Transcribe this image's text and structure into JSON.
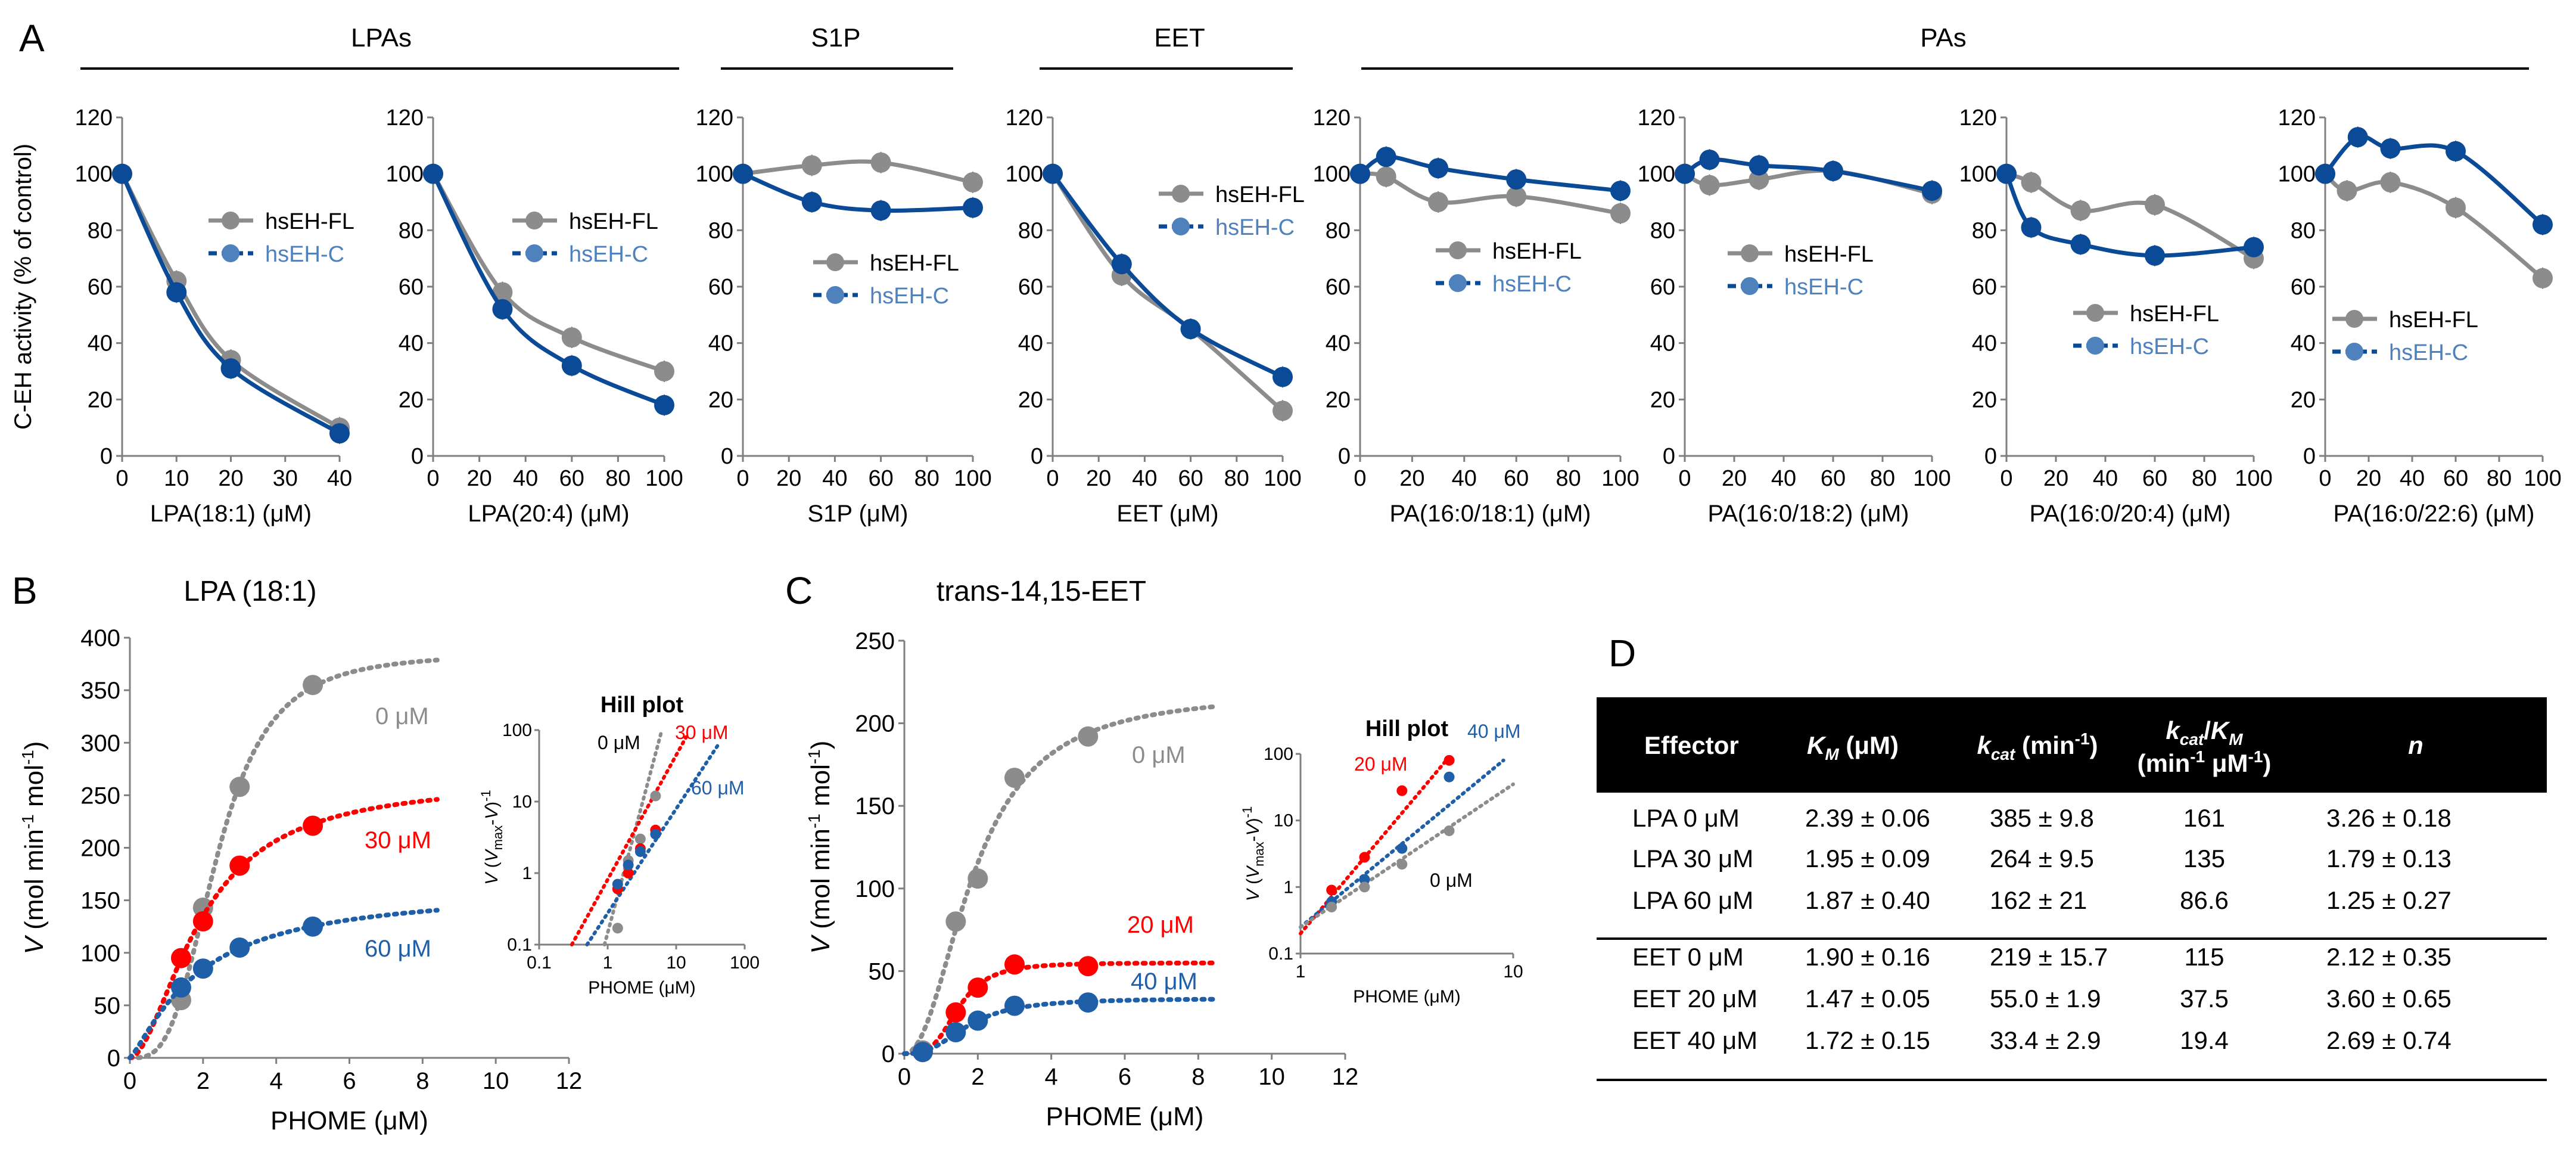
{
  "panel_labels": {
    "A": "A",
    "B": "B",
    "C": "C",
    "D": "D"
  },
  "group_headers": [
    "LPAs",
    "S1P",
    "EET",
    "PAs"
  ],
  "colors": {
    "fl": "#8c8c8c",
    "c": "#0a4a96",
    "c_legend_text": "#4f81bd",
    "zero": "#8c8c8c",
    "mid": "#ff0000",
    "high": "#1f5fa8",
    "table_header_bg": "#000000"
  },
  "legend": {
    "fl": "hsEH-FL",
    "c": "hsEH-C"
  },
  "panel_a_ylabel": "C-EH activity (% of control)",
  "chart_data": [
    {
      "id": "A1",
      "type": "line",
      "xlabel": "LPA(18:1) (μM)",
      "ylabel": "C-EH activity (% of control)",
      "xlim": [
        0,
        40
      ],
      "ylim": [
        0,
        120
      ],
      "xticks": [
        0,
        10,
        20,
        30,
        40
      ],
      "yticks": [
        0,
        20,
        40,
        60,
        80,
        100,
        120
      ],
      "legend_loc": "upper-middle",
      "series": [
        {
          "name": "hsEH-FL",
          "x": [
            0,
            10,
            20,
            40
          ],
          "y": [
            100,
            62,
            34,
            10
          ]
        },
        {
          "name": "hsEH-C",
          "x": [
            0,
            10,
            20,
            40
          ],
          "y": [
            100,
            58,
            31,
            8
          ]
        }
      ]
    },
    {
      "id": "A2",
      "type": "line",
      "xlabel": "LPA(20:4) (μM)",
      "xlim": [
        0,
        100
      ],
      "ylim": [
        0,
        120
      ],
      "xticks": [
        0,
        20,
        40,
        60,
        80,
        100
      ],
      "yticks": [
        0,
        20,
        40,
        60,
        80,
        100,
        120
      ],
      "legend_loc": "upper-middle",
      "series": [
        {
          "name": "hsEH-FL",
          "x": [
            0,
            30,
            60,
            100
          ],
          "y": [
            100,
            58,
            42,
            30
          ]
        },
        {
          "name": "hsEH-C",
          "x": [
            0,
            30,
            60,
            100
          ],
          "y": [
            100,
            52,
            32,
            18
          ]
        }
      ]
    },
    {
      "id": "A3",
      "type": "line",
      "xlabel": "S1P (μM)",
      "xlim": [
        0,
        100
      ],
      "ylim": [
        0,
        120
      ],
      "xticks": [
        0,
        20,
        40,
        60,
        80,
        100
      ],
      "yticks": [
        0,
        20,
        40,
        60,
        80,
        100,
        120
      ],
      "legend_loc": "middle",
      "series": [
        {
          "name": "hsEH-FL",
          "x": [
            0,
            30,
            60,
            100
          ],
          "y": [
            100,
            103,
            104,
            97
          ]
        },
        {
          "name": "hsEH-C",
          "x": [
            0,
            30,
            60,
            100
          ],
          "y": [
            100,
            90,
            87,
            88
          ]
        }
      ]
    },
    {
      "id": "A4",
      "type": "line",
      "xlabel": "EET (μM)",
      "xlim": [
        0,
        100
      ],
      "ylim": [
        0,
        120
      ],
      "xticks": [
        0,
        20,
        40,
        60,
        80,
        100
      ],
      "yticks": [
        0,
        20,
        40,
        60,
        80,
        100,
        120
      ],
      "legend_loc": "upper-middle",
      "series": [
        {
          "name": "hsEH-FL",
          "x": [
            0,
            30,
            60,
            100
          ],
          "y": [
            100,
            64,
            45,
            16
          ]
        },
        {
          "name": "hsEH-C",
          "x": [
            0,
            30,
            60,
            100
          ],
          "y": [
            100,
            68,
            45,
            28
          ]
        }
      ]
    },
    {
      "id": "A5",
      "type": "line",
      "xlabel": "PA(16:0/18:1) (μM)",
      "xlim": [
        0,
        100
      ],
      "ylim": [
        0,
        120
      ],
      "xticks": [
        0,
        20,
        40,
        60,
        80,
        100
      ],
      "yticks": [
        0,
        20,
        40,
        60,
        80,
        100,
        120
      ],
      "legend_loc": "middle",
      "series": [
        {
          "name": "hsEH-FL",
          "x": [
            0,
            10,
            30,
            60,
            100
          ],
          "y": [
            100,
            99,
            90,
            92,
            86
          ]
        },
        {
          "name": "hsEH-C",
          "x": [
            0,
            10,
            30,
            60,
            100
          ],
          "y": [
            100,
            106,
            102,
            98,
            94
          ]
        }
      ]
    },
    {
      "id": "A6",
      "type": "line",
      "xlabel": "PA(16:0/18:2) (μM)",
      "xlim": [
        0,
        100
      ],
      "ylim": [
        0,
        120
      ],
      "xticks": [
        0,
        20,
        40,
        60,
        80,
        100
      ],
      "yticks": [
        0,
        20,
        40,
        60,
        80,
        100,
        120
      ],
      "legend_loc": "middle",
      "series": [
        {
          "name": "hsEH-FL",
          "x": [
            0,
            10,
            30,
            60,
            100
          ],
          "y": [
            100,
            96,
            98,
            101,
            93
          ]
        },
        {
          "name": "hsEH-C",
          "x": [
            0,
            10,
            30,
            60,
            100
          ],
          "y": [
            100,
            105,
            103,
            101,
            94
          ]
        }
      ]
    },
    {
      "id": "A7",
      "type": "line",
      "xlabel": "PA(16:0/20:4) (μM)",
      "xlim": [
        0,
        100
      ],
      "ylim": [
        0,
        120
      ],
      "xticks": [
        0,
        20,
        40,
        60,
        80,
        100
      ],
      "yticks": [
        0,
        20,
        40,
        60,
        80,
        100,
        120
      ],
      "legend_loc": "lower-middle",
      "series": [
        {
          "name": "hsEH-FL",
          "x": [
            0,
            10,
            30,
            60,
            100
          ],
          "y": [
            100,
            97,
            87,
            89,
            70
          ]
        },
        {
          "name": "hsEH-C",
          "x": [
            0,
            10,
            30,
            60,
            100
          ],
          "y": [
            100,
            81,
            75,
            71,
            74
          ]
        }
      ]
    },
    {
      "id": "A8",
      "type": "line",
      "xlabel": "PA(16:0/22:6) (μM)",
      "xlim": [
        0,
        100
      ],
      "ylim": [
        0,
        120
      ],
      "xticks": [
        0,
        20,
        40,
        60,
        80,
        100
      ],
      "yticks": [
        0,
        20,
        40,
        60,
        80,
        100,
        120
      ],
      "legend_loc": "lower-middle",
      "series": [
        {
          "name": "hsEH-FL",
          "x": [
            0,
            10,
            30,
            60,
            100
          ],
          "y": [
            100,
            94,
            97,
            88,
            63
          ]
        },
        {
          "name": "hsEH-C",
          "x": [
            0,
            15,
            30,
            60,
            100
          ],
          "y": [
            100,
            113,
            109,
            108,
            82
          ]
        }
      ]
    },
    {
      "id": "B",
      "type": "scatter",
      "title": "LPA (18:1)",
      "xlabel": "PHOME (μM)",
      "ylabel": "V (mol min-1 mol-1)",
      "xlim": [
        0,
        12
      ],
      "ylim": [
        0,
        400
      ],
      "xticks": [
        0,
        2,
        4,
        6,
        8,
        10,
        12
      ],
      "yticks": [
        0,
        50,
        100,
        150,
        200,
        250,
        300,
        350,
        400
      ],
      "series": [
        {
          "name": "0 μM",
          "x": [
            1.4,
            2,
            3,
            5
          ],
          "y": [
            55,
            143,
            258,
            355
          ],
          "fit_vmax": 385,
          "fit_k": 2.39,
          "fit_n": 3.26
        },
        {
          "name": "30 μM",
          "x": [
            1.4,
            2,
            3,
            5
          ],
          "y": [
            95,
            130,
            183,
            221
          ],
          "fit_vmax": 264,
          "fit_k": 1.95,
          "fit_n": 1.79
        },
        {
          "name": "60 μM",
          "x": [
            1.4,
            2,
            3,
            5
          ],
          "y": [
            67,
            85,
            105,
            125
          ],
          "fit_vmax": 162,
          "fit_k": 1.87,
          "fit_n": 1.25
        }
      ]
    },
    {
      "id": "B-inset",
      "type": "scatter",
      "title": "Hill plot",
      "xlabel": "PHOME (μM)",
      "ylabel": "V (Vmax-V)-1",
      "scale": "log-log",
      "xlim": [
        0.1,
        100
      ],
      "ylim": [
        0.1,
        100
      ],
      "xticks": [
        "0.1",
        "1",
        "10",
        "100"
      ],
      "yticks": [
        "0.1",
        "1",
        "10",
        "100"
      ],
      "labels": [
        "0 μM",
        "30 μM",
        "60 μM"
      ]
    },
    {
      "id": "C",
      "type": "scatter",
      "title": "trans-14,15-EET",
      "xlabel": "PHOME (μM)",
      "ylabel": "V (mol min-1 mol-1)",
      "xlim": [
        0,
        12
      ],
      "ylim": [
        0,
        250
      ],
      "xticks": [
        0,
        2,
        4,
        6,
        8,
        10,
        12
      ],
      "yticks": [
        0,
        50,
        100,
        150,
        200,
        250
      ],
      "series": [
        {
          "name": "0 μM",
          "x": [
            0.5,
            1.4,
            2,
            3,
            5
          ],
          "y": [
            2,
            80,
            106,
            167,
            192
          ],
          "fit_vmax": 219,
          "fit_k": 1.9,
          "fit_n": 2.12
        },
        {
          "name": "20 μM",
          "x": [
            0.5,
            1.4,
            2,
            3,
            5
          ],
          "y": [
            1,
            25,
            40,
            54,
            53
          ],
          "fit_vmax": 55,
          "fit_k": 1.47,
          "fit_n": 3.6
        },
        {
          "name": "40 μM",
          "x": [
            0.5,
            1.4,
            2,
            3,
            5
          ],
          "y": [
            1,
            13,
            20,
            29,
            31
          ],
          "fit_vmax": 33.4,
          "fit_k": 1.72,
          "fit_n": 2.69
        }
      ]
    },
    {
      "id": "C-inset",
      "type": "scatter",
      "title": "Hill plot",
      "xlabel": "PHOME (μM)",
      "ylabel": "V (Vmax-V)-1",
      "scale": "log-log",
      "xlim": [
        1,
        10
      ],
      "ylim": [
        0.1,
        100
      ],
      "xticks": [
        "1",
        "10"
      ],
      "yticks": [
        "0.1",
        "1",
        "10",
        "100"
      ],
      "labels": [
        "40 μM",
        "20 μM",
        "0 μM"
      ]
    },
    {
      "id": "D",
      "type": "table",
      "columns": [
        "Effector",
        "KM (μM)",
        "kcat (min-1)",
        "kcat/KM (min-1 μM-1)",
        "n"
      ],
      "rows": [
        [
          "LPA 0 μM",
          "2.39 ± 0.06",
          "385 ± 9.8",
          "161",
          "3.26 ± 0.18"
        ],
        [
          "LPA 30 μM",
          "1.95 ± 0.09",
          "264 ± 9.5",
          "135",
          "1.79 ± 0.13"
        ],
        [
          "LPA 60 μM",
          "1.87 ± 0.40",
          "162 ± 21",
          "86.6",
          "1.25 ± 0.27"
        ],
        [
          "EET 0 μM",
          "1.90 ± 0.16",
          "219 ± 15.7",
          "115",
          "2.12 ± 0.35"
        ],
        [
          "EET 20 μM",
          "1.47 ± 0.05",
          "55.0 ± 1.9",
          "37.5",
          "3.60 ± 0.65"
        ],
        [
          "EET 40 μM",
          "1.72 ± 0.15",
          "33.4 ± 2.9",
          "19.4",
          "2.69 ± 0.74"
        ]
      ]
    }
  ]
}
